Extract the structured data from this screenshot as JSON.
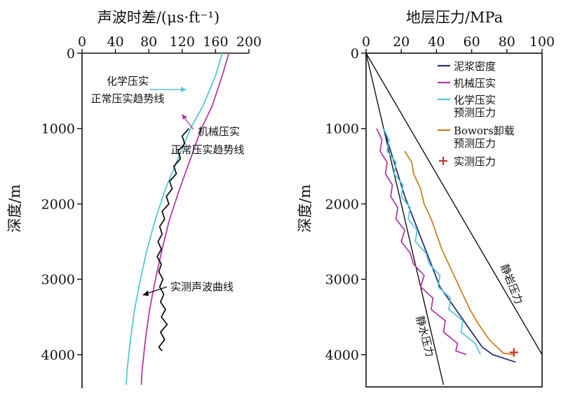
{
  "colors": {
    "black": "#111111",
    "magenta": "#b23aa8",
    "cyan": "#53c9d6",
    "navy": "#2a2f7a",
    "orange": "#c98222",
    "red": "#c0392b"
  },
  "chart_data": [
    {
      "type": "line",
      "title": "声波时差/(μs·ft⁻¹)",
      "xlabel": "声波时差/(μs·ft⁻¹)",
      "ylabel": "深度/m",
      "xlim": [
        0,
        200
      ],
      "ylim": [
        0,
        4400
      ],
      "x_axis_position": "top",
      "y_inverted": true,
      "x_ticks": [
        "0",
        "40",
        "80",
        "120",
        "160",
        "200"
      ],
      "y_ticks": [
        "0",
        "1000",
        "2000",
        "3000",
        "4000"
      ],
      "annotations": [
        {
          "text": "化学压实",
          "arrow_to_series": 0
        },
        {
          "text": "正常压实趋势线",
          "arrow_to_series": 0
        },
        {
          "text": "机械压实",
          "arrow_to_series": 1
        },
        {
          "text": "正常压实趋势线",
          "arrow_to_series": 1
        },
        {
          "text": "实测声波曲线",
          "arrow_to_series": 2
        }
      ],
      "series": [
        {
          "color": "#53c9d6",
          "points": [
            [
              168,
              0
            ],
            [
              160,
              300
            ],
            [
              145,
              700
            ],
            [
              130,
              1000
            ],
            [
              115,
              1400
            ],
            [
              100,
              1800
            ],
            [
              88,
              2200
            ],
            [
              78,
              2600
            ],
            [
              70,
              3000
            ],
            [
              63,
              3400
            ],
            [
              58,
              3800
            ],
            [
              54,
              4200
            ],
            [
              53,
              4400
            ]
          ]
        },
        {
          "color": "#b23aa8",
          "points": [
            [
              176,
              0
            ],
            [
              168,
              300
            ],
            [
              156,
              700
            ],
            [
              143,
              1000
            ],
            [
              130,
              1400
            ],
            [
              117,
              1800
            ],
            [
              105,
              2200
            ],
            [
              96,
              2600
            ],
            [
              88,
              3000
            ],
            [
              81,
              3400
            ],
            [
              76,
              3800
            ],
            [
              72,
              4200
            ],
            [
              71,
              4400
            ]
          ]
        },
        {
          "color": "#111111",
          "points": [
            [
              128,
              1000
            ],
            [
              120,
              1100
            ],
            [
              123,
              1200
            ],
            [
              115,
              1300
            ],
            [
              118,
              1400
            ],
            [
              110,
              1500
            ],
            [
              113,
              1600
            ],
            [
              105,
              1700
            ],
            [
              108,
              1800
            ],
            [
              101,
              1900
            ],
            [
              104,
              2000
            ],
            [
              96,
              2100
            ],
            [
              99,
              2200
            ],
            [
              93,
              2300
            ],
            [
              96,
              2400
            ],
            [
              91,
              2500
            ],
            [
              95,
              2600
            ],
            [
              90,
              2700
            ],
            [
              95,
              2800
            ],
            [
              92,
              2900
            ],
            [
              97,
              3000
            ],
            [
              93,
              3100
            ],
            [
              98,
              3200
            ],
            [
              94,
              3300
            ],
            [
              100,
              3400
            ],
            [
              95,
              3500
            ],
            [
              102,
              3600
            ],
            [
              94,
              3700
            ],
            [
              99,
              3800
            ],
            [
              92,
              3900
            ],
            [
              96,
              3950
            ]
          ]
        }
      ]
    },
    {
      "type": "line",
      "title": "地层压力/MPa",
      "xlabel": "地层压力/MPa",
      "ylabel": "深度/m",
      "xlim": [
        0,
        100
      ],
      "ylim": [
        0,
        4400
      ],
      "x_axis_position": "top",
      "y_inverted": true,
      "x_ticks": [
        "0",
        "20",
        "40",
        "60",
        "80",
        "100"
      ],
      "y_ticks": [
        "0",
        "1000",
        "2000",
        "3000",
        "4000"
      ],
      "legend_position": "top-right",
      "legend": [
        "泥浆密度",
        "机械压实",
        "化学压实\n预测压力",
        "Bowors卸载\n预测压力",
        "实测压力"
      ],
      "reference_lines": [
        {
          "label": "静水压力",
          "points": [
            [
              0,
              0
            ],
            [
              44,
              4400
            ]
          ]
        },
        {
          "label": "静岩压力",
          "points": [
            [
              0,
              0
            ],
            [
              100,
              4000
            ]
          ]
        }
      ],
      "series": [
        {
          "name": "泥浆密度",
          "color": "#2a2f7a",
          "points": [
            [
              10,
              1000
            ],
            [
              14,
              1300
            ],
            [
              18,
              1600
            ],
            [
              22,
              1900
            ],
            [
              27,
              2200
            ],
            [
              32,
              2500
            ],
            [
              37,
              2800
            ],
            [
              42,
              3100
            ],
            [
              48,
              3300
            ],
            [
              54,
              3500
            ],
            [
              60,
              3700
            ],
            [
              66,
              3900
            ],
            [
              72,
              4000
            ],
            [
              85,
              4100
            ]
          ]
        },
        {
          "name": "机械压实",
          "color": "#b23aa8",
          "points": [
            [
              6,
              1000
            ],
            [
              9,
              1150
            ],
            [
              8,
              1300
            ],
            [
              12,
              1450
            ],
            [
              11,
              1600
            ],
            [
              15,
              1750
            ],
            [
              14,
              1900
            ],
            [
              18,
              2050
            ],
            [
              17,
              2200
            ],
            [
              22,
              2350
            ],
            [
              20,
              2500
            ],
            [
              25,
              2650
            ],
            [
              27,
              2800
            ],
            [
              33,
              2950
            ],
            [
              31,
              3100
            ],
            [
              38,
              3250
            ],
            [
              37,
              3400
            ],
            [
              45,
              3550
            ],
            [
              44,
              3700
            ],
            [
              52,
              3850
            ],
            [
              51,
              3950
            ],
            [
              57,
              4000
            ]
          ]
        },
        {
          "name": "化学压实\n预测压力",
          "color": "#53c9d6",
          "points": [
            [
              10,
              1000
            ],
            [
              13,
              1150
            ],
            [
              12,
              1300
            ],
            [
              17,
              1450
            ],
            [
              16,
              1600
            ],
            [
              21,
              1750
            ],
            [
              20,
              1900
            ],
            [
              25,
              2050
            ],
            [
              24,
              2200
            ],
            [
              29,
              2350
            ],
            [
              28,
              2500
            ],
            [
              34,
              2650
            ],
            [
              36,
              2800
            ],
            [
              42,
              2950
            ],
            [
              41,
              3100
            ],
            [
              48,
              3250
            ],
            [
              47,
              3400
            ],
            [
              55,
              3550
            ],
            [
              54,
              3700
            ],
            [
              62,
              3850
            ],
            [
              65,
              4000
            ]
          ]
        },
        {
          "name": "Bowors卸载\n预测压力",
          "color": "#c98222",
          "points": [
            [
              22,
              1300
            ],
            [
              26,
              1450
            ],
            [
              27,
              1600
            ],
            [
              31,
              1800
            ],
            [
              33,
              2000
            ],
            [
              37,
              2200
            ],
            [
              40,
              2400
            ],
            [
              43,
              2600
            ],
            [
              47,
              2800
            ],
            [
              51,
              3000
            ],
            [
              55,
              3200
            ],
            [
              59,
              3400
            ],
            [
              64,
              3600
            ],
            [
              70,
              3800
            ],
            [
              78,
              3980
            ],
            [
              84,
              4000
            ]
          ]
        },
        {
          "name": "实测压力",
          "color": "#c0392b",
          "marker": "+",
          "points": [
            [
              84,
              3970
            ]
          ]
        }
      ]
    }
  ]
}
